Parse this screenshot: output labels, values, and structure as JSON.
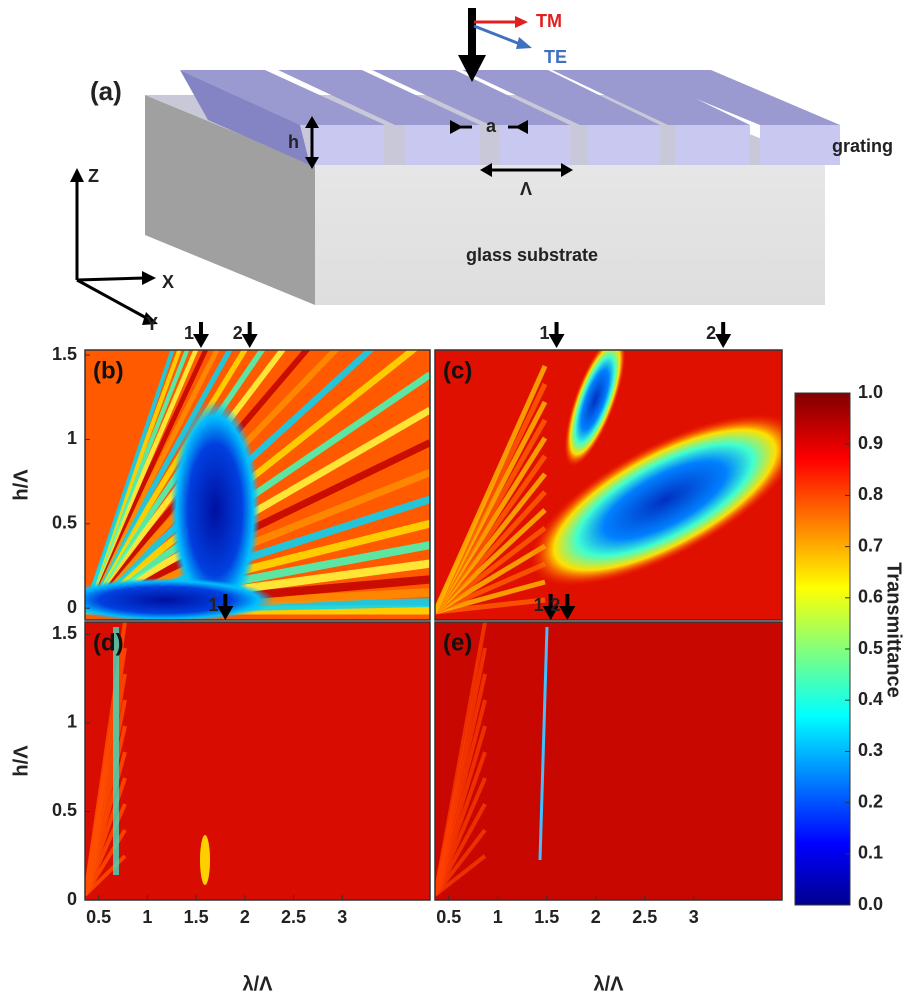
{
  "diagram": {
    "label": "(a)",
    "tm": "TM",
    "te": "TE",
    "h": "h",
    "a": "a",
    "period": "Λ",
    "grating": "grating",
    "substrate": "glass substrate",
    "z": "Z",
    "x": "X",
    "y": "Y"
  },
  "chart_data": [
    {
      "type": "heatmap",
      "label": "(b)",
      "ylabel": "h/Λ",
      "xlim": [
        0.36,
        3.9
      ],
      "ylim": [
        -0.07,
        1.53
      ],
      "yticks": [
        0,
        0.5,
        1,
        1.5
      ],
      "annotations": [
        {
          "x": 1.55,
          "text": "1"
        },
        {
          "x": 2.05,
          "text": "2"
        }
      ]
    },
    {
      "type": "heatmap",
      "label": "(c)",
      "xlim": [
        0.36,
        3.9
      ],
      "ylim": [
        -0.07,
        1.53
      ],
      "annotations": [
        {
          "x": 1.6,
          "text": "1"
        },
        {
          "x": 3.3,
          "text": "2"
        }
      ]
    },
    {
      "type": "heatmap",
      "label": "(d)",
      "ylabel": "h/Λ",
      "xlabel": "λ/Λ",
      "xlim": [
        0.36,
        3.9
      ],
      "ylim": [
        0,
        1.57
      ],
      "yticks": [
        0,
        0.5,
        1,
        1.5
      ],
      "xticks": [
        0.5,
        1,
        1.5,
        2,
        2.5,
        3
      ],
      "annotations": [
        {
          "x": 1.8,
          "text": "1"
        }
      ]
    },
    {
      "type": "heatmap",
      "label": "(e)",
      "xlabel": "λ/Λ",
      "xlim": [
        0.36,
        3.9
      ],
      "ylim": [
        0,
        1.57
      ],
      "xticks": [
        0.5,
        1,
        1.5,
        2,
        2.5,
        3
      ],
      "annotations": [
        {
          "x": 1.54,
          "text": "1"
        },
        {
          "x": 1.71,
          "text": "2"
        }
      ]
    }
  ],
  "colorbar": {
    "label": "Transmittance",
    "lim": [
      0,
      1
    ],
    "ticks": [
      {
        "value": 0,
        "label": "0.0"
      },
      0.1,
      0.2,
      0.3,
      0.4,
      0.5,
      0.6,
      0.7,
      0.8,
      0.9,
      {
        "value": 1,
        "label": "1.0"
      }
    ]
  }
}
